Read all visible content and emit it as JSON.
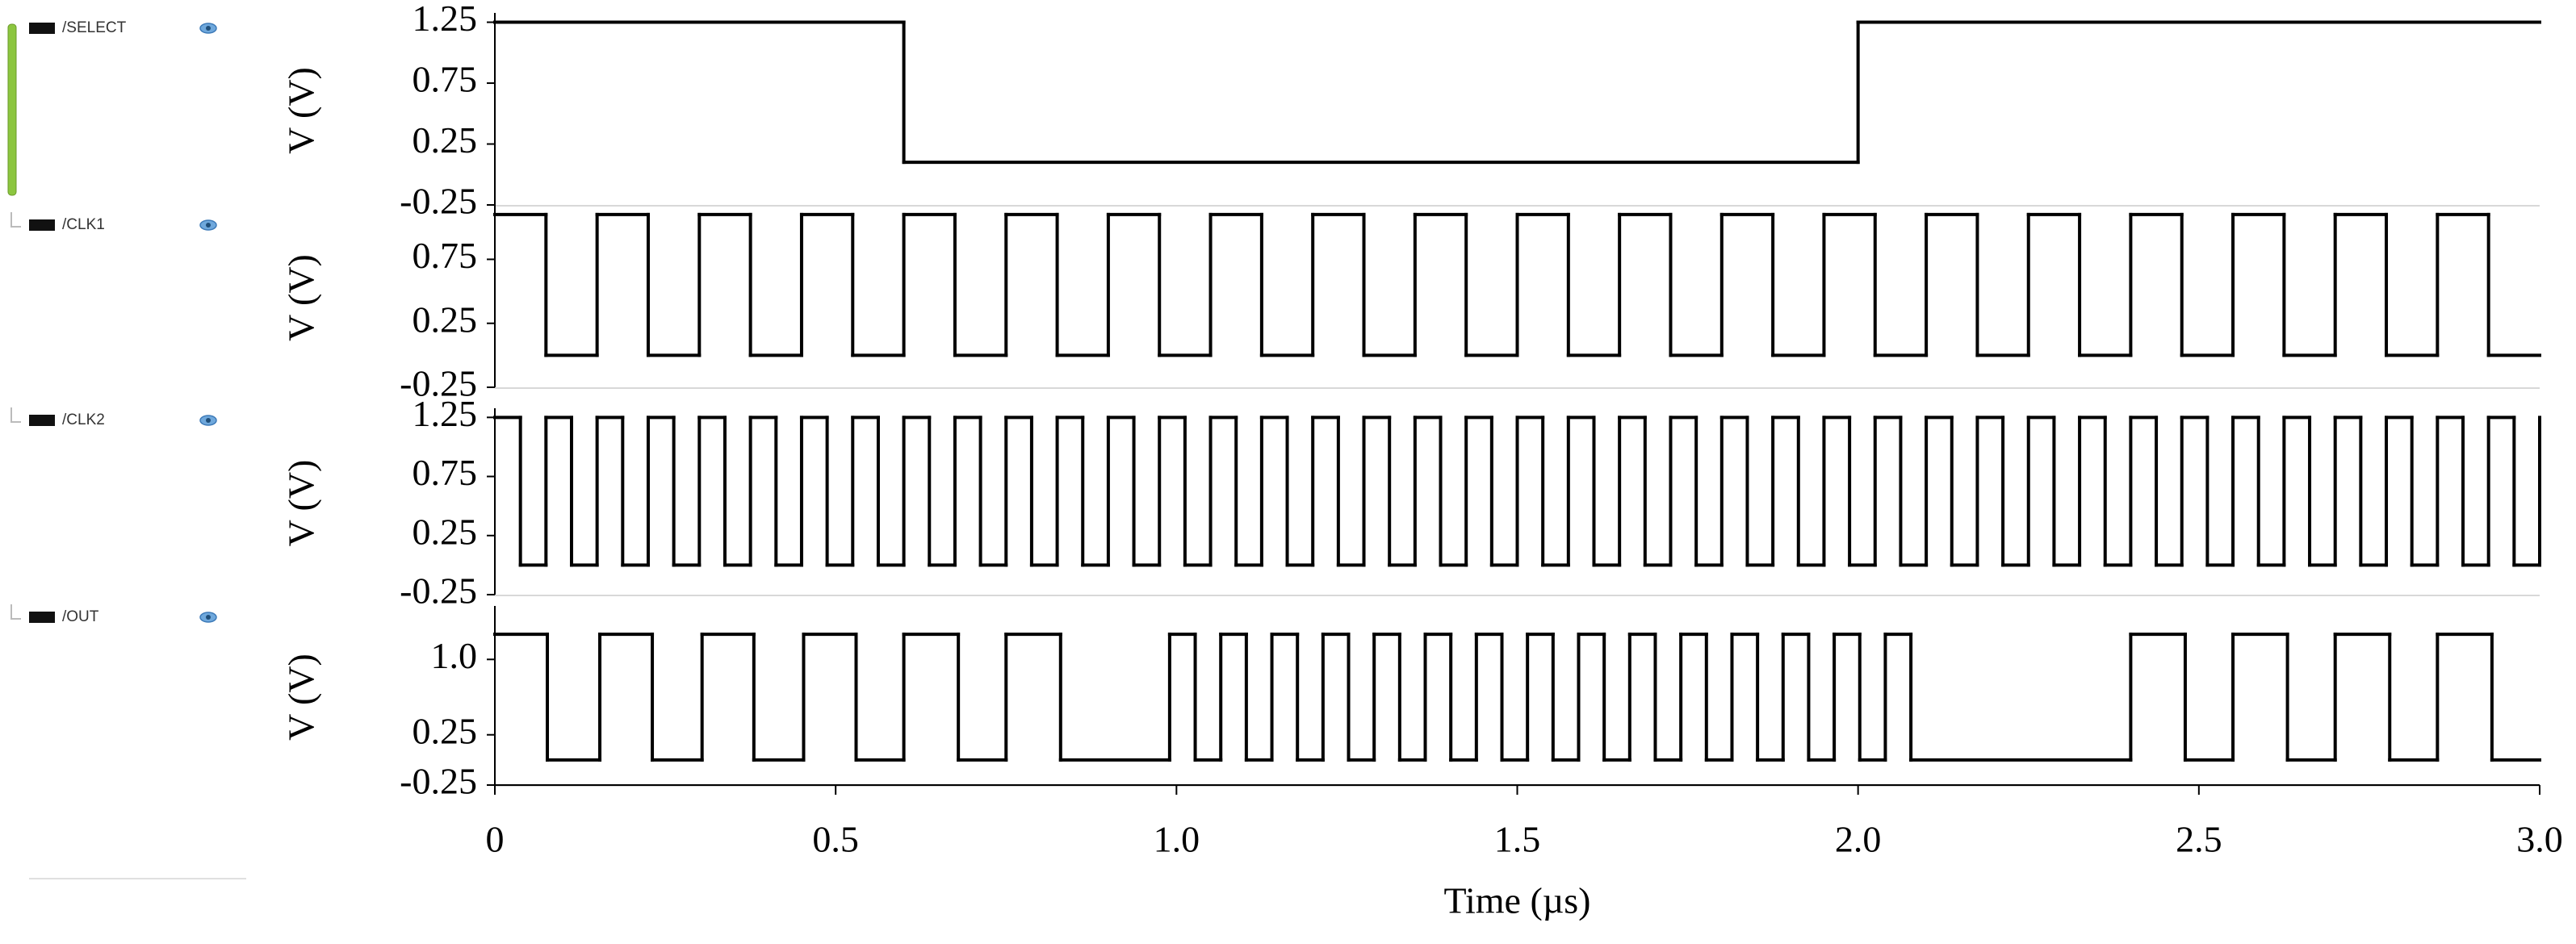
{
  "chart_data": [
    {
      "type": "line",
      "drawstyle": "steps-post",
      "ylabel": "V (V)",
      "xlim": [
        0,
        3
      ],
      "ylim": [
        -0.25,
        1.3
      ],
      "yticks": [
        -0.25,
        0.25,
        0.75,
        1.25
      ],
      "x": [
        0,
        0.6,
        2,
        3
      ],
      "series": [
        {
          "name": "/SELECT",
          "color": "#000000",
          "values": [
            1.25,
            0.1,
            1.25,
            1.25
          ]
        }
      ]
    },
    {
      "type": "line",
      "drawstyle": "steps-post",
      "ylabel": "V (V)",
      "xlim": [
        0,
        3
      ],
      "ylim": [
        -0.25,
        1.15
      ],
      "yticks": [
        -0.25,
        0.25,
        0.75
      ],
      "x": [
        0,
        0.075,
        0.15,
        0.225,
        0.3,
        0.375,
        0.45,
        0.525,
        0.6,
        0.675,
        0.75,
        0.825,
        0.9,
        0.975,
        1.05,
        1.125,
        1.2,
        1.275,
        1.35,
        1.425,
        1.5,
        1.575,
        1.65,
        1.725,
        1.8,
        1.875,
        1.95,
        2.025,
        2.1,
        2.175,
        2.25,
        2.325,
        2.4,
        2.475,
        2.55,
        2.625,
        2.7,
        2.775,
        2.85,
        2.925,
        3
      ],
      "series": [
        {
          "name": "/CLK1",
          "color": "#000000",
          "values": [
            1.1,
            0,
            1.1,
            0,
            1.1,
            0,
            1.1,
            0,
            1.1,
            0,
            1.1,
            0,
            1.1,
            0,
            1.1,
            0,
            1.1,
            0,
            1.1,
            0,
            1.1,
            0,
            1.1,
            0,
            1.1,
            0,
            1.1,
            0,
            1.1,
            0,
            1.1,
            0,
            1.1,
            0,
            1.1,
            0,
            1.1,
            0,
            1.1,
            0,
            0
          ]
        }
      ]
    },
    {
      "type": "line",
      "drawstyle": "steps-post",
      "ylabel": "V (V)",
      "xlim": [
        0,
        3
      ],
      "ylim": [
        -0.25,
        1.3
      ],
      "yticks": [
        -0.25,
        0.25,
        0.75,
        1.25
      ],
      "x": [
        0,
        0.0375,
        0.075,
        0.1125,
        0.15,
        0.1875,
        0.225,
        0.2625,
        0.3,
        0.3375,
        0.375,
        0.4125,
        0.45,
        0.4875,
        0.525,
        0.5625,
        0.6,
        0.6375,
        0.675,
        0.7125,
        0.75,
        0.7875,
        0.825,
        0.8625,
        0.9,
        0.9375,
        0.975,
        1.0125,
        1.05,
        1.0875,
        1.125,
        1.1625,
        1.2,
        1.2375,
        1.275,
        1.3125,
        1.35,
        1.3875,
        1.425,
        1.4625,
        1.5,
        1.5375,
        1.575,
        1.6125,
        1.65,
        1.6875,
        1.725,
        1.7625,
        1.8,
        1.8375,
        1.875,
        1.9125,
        1.95,
        1.9875,
        2.025,
        2.0625,
        2.1,
        2.1375,
        2.175,
        2.2125,
        2.25,
        2.2875,
        2.325,
        2.3625,
        2.4,
        2.4375,
        2.475,
        2.5125,
        2.55,
        2.5875,
        2.625,
        2.6625,
        2.7,
        2.7375,
        2.775,
        2.8125,
        2.85,
        2.8875,
        2.925,
        2.9625,
        3
      ],
      "series": [
        {
          "name": "/CLK2",
          "color": "#000000",
          "values": [
            1.25,
            0,
            1.25,
            0,
            1.25,
            0,
            1.25,
            0,
            1.25,
            0,
            1.25,
            0,
            1.25,
            0,
            1.25,
            0,
            1.25,
            0,
            1.25,
            0,
            1.25,
            0,
            1.25,
            0,
            1.25,
            0,
            1.25,
            0,
            1.25,
            0,
            1.25,
            0,
            1.25,
            0,
            1.25,
            0,
            1.25,
            0,
            1.25,
            0,
            1.25,
            0,
            1.25,
            0,
            1.25,
            0,
            1.25,
            0,
            1.25,
            0,
            1.25,
            0,
            1.25,
            0,
            1.25,
            0,
            1.25,
            0,
            1.25,
            0,
            1.25,
            0,
            1.25,
            0,
            1.25,
            0,
            1.25,
            0,
            1.25,
            0,
            1.25,
            0,
            1.25,
            0,
            1.25,
            0,
            1.25,
            0,
            1.25,
            0,
            1.25
          ]
        }
      ]
    },
    {
      "type": "line",
      "drawstyle": "steps-post",
      "ylabel": "V (V)",
      "xlabel": "Time (µs)",
      "xlim": [
        0,
        3
      ],
      "ylim": [
        -0.25,
        1.5
      ],
      "yticks": [
        -0.25,
        0.25,
        {
          "value": 1,
          "label": "1.0"
        }
      ],
      "xticks": [
        0,
        0.5,
        {
          "value": 1,
          "label": "1.0"
        },
        1.5,
        {
          "value": 2,
          "label": "2.0"
        },
        2.5,
        {
          "value": 3,
          "label": "3.0"
        }
      ],
      "x": [
        0,
        0.077,
        0.154,
        0.231,
        0.304,
        0.38,
        0.453,
        0.53,
        0.6,
        0.68,
        0.75,
        0.83,
        0.99,
        1.0275,
        1.065,
        1.1025,
        1.14,
        1.1775,
        1.215,
        1.2525,
        1.29,
        1.3275,
        1.365,
        1.4025,
        1.44,
        1.4775,
        1.515,
        1.5525,
        1.59,
        1.6275,
        1.665,
        1.7025,
        1.74,
        1.7775,
        1.815,
        1.8525,
        1.89,
        1.9275,
        1.965,
        2.0025,
        2.04,
        2.0775,
        2.4,
        2.48,
        2.55,
        2.63,
        2.7,
        2.78,
        2.85,
        2.93,
        3
      ],
      "series": [
        {
          "name": "/OUT",
          "color": "#000000",
          "values": [
            1.25,
            0,
            1.25,
            0,
            1.25,
            0,
            1.25,
            0,
            1.25,
            0,
            1.25,
            0,
            1.25,
            0,
            1.25,
            0,
            1.25,
            0,
            1.25,
            0,
            1.25,
            0,
            1.25,
            0,
            1.25,
            0,
            1.25,
            0,
            1.25,
            0,
            1.25,
            0,
            1.25,
            0,
            1.25,
            0,
            1.25,
            0,
            1.25,
            0,
            1.25,
            0,
            1.25,
            0,
            1.25,
            0,
            1.25,
            0,
            1.25,
            0,
            0
          ]
        }
      ]
    }
  ]
}
